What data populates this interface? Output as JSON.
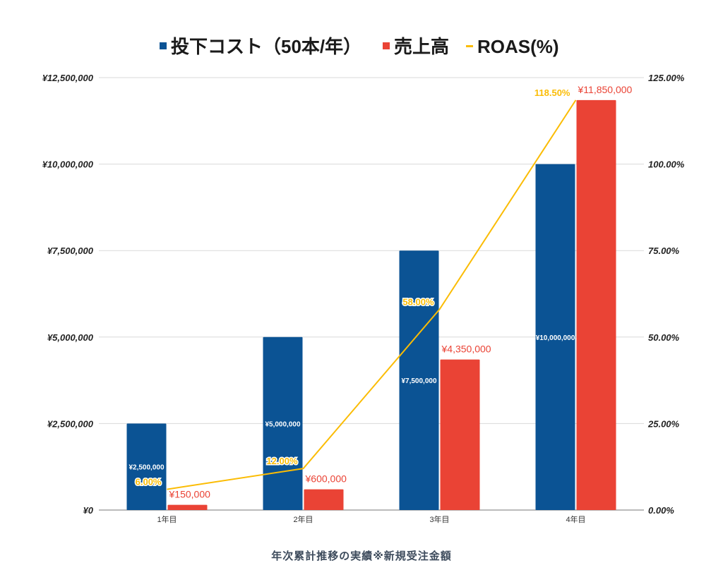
{
  "chart_data": {
    "type": "bar",
    "title": "",
    "caption": "年次累計推移の実績※新規受注金額",
    "categories": [
      "1年目",
      "2年目",
      "3年目",
      "4年目"
    ],
    "series": [
      {
        "name": "投下コスト（50本/年）",
        "type": "bar",
        "axis": "left",
        "color": "#0b5394",
        "values": [
          2500000,
          5000000,
          7500000,
          10000000
        ],
        "labels": [
          "¥2,500,000",
          "¥5,000,000",
          "¥7,500,000",
          "¥10,000,000"
        ]
      },
      {
        "name": "売上高",
        "type": "bar",
        "axis": "left",
        "color": "#ea4335",
        "values": [
          150000,
          600000,
          4350000,
          11850000
        ],
        "labels": [
          "¥150,000",
          "¥600,000",
          "¥4,350,000",
          "¥11,850,000"
        ]
      },
      {
        "name": "ROAS(%)",
        "type": "line",
        "axis": "right",
        "color": "#fbbc04",
        "values": [
          6.0,
          12.0,
          58.0,
          118.5
        ],
        "labels": [
          "6.00%",
          "12.00%",
          "58.00%",
          "118.50%"
        ]
      }
    ],
    "y_left": {
      "range": [
        0,
        12500000
      ],
      "ticks": [
        0,
        2500000,
        5000000,
        7500000,
        10000000,
        12500000
      ],
      "tick_labels": [
        "¥0",
        "¥2,500,000",
        "¥5,000,000",
        "¥7,500,000",
        "¥10,000,000",
        "¥12,500,000"
      ]
    },
    "y_right": {
      "range": [
        0,
        125
      ],
      "ticks": [
        0,
        25,
        50,
        75,
        100,
        125
      ],
      "tick_labels": [
        "0.00%",
        "25.00%",
        "50.00%",
        "75.00%",
        "100.00%",
        "125.00%"
      ]
    },
    "grid": true,
    "legend_position": "top"
  }
}
